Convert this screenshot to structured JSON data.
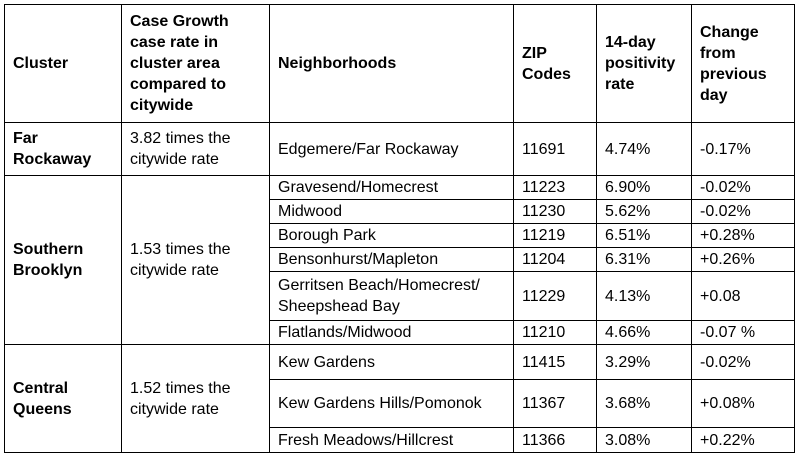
{
  "headers": {
    "cluster": "Cluster",
    "case_growth": "Case Growth\ncase rate in\ncluster area\ncompared to\ncitywide",
    "neighborhoods": "Neighborhoods",
    "zip": "ZIP\nCodes",
    "positivity": "14-day\npositivity\nrate",
    "change": "Change\nfrom\nprevious\nday"
  },
  "clusters": [
    {
      "name": "Far\nRockaway",
      "growth": "3.82 times the\ncitywide rate",
      "rows": [
        {
          "neighborhood": "Edgemere/Far Rockaway",
          "zip": "11691",
          "rate": "4.74%",
          "change": "-0.17%"
        }
      ]
    },
    {
      "name": "Southern\nBrooklyn",
      "growth": "1.53 times the\ncitywide rate",
      "rows": [
        {
          "neighborhood": "Gravesend/Homecrest",
          "zip": "11223",
          "rate": "6.90%",
          "change": "-0.02%"
        },
        {
          "neighborhood": "Midwood",
          "zip": "11230",
          "rate": "5.62%",
          "change": "-0.02%"
        },
        {
          "neighborhood": "Borough Park",
          "zip": "11219",
          "rate": "6.51%",
          "change": "+0.28%"
        },
        {
          "neighborhood": "Bensonhurst/Mapleton",
          "zip": "11204",
          "rate": "6.31%",
          "change": "+0.26%"
        },
        {
          "neighborhood": "Gerritsen Beach/Homecrest/\nSheepshead Bay",
          "zip": "11229",
          "rate": "4.13%",
          "change": "+0.08"
        },
        {
          "neighborhood": "Flatlands/Midwood",
          "zip": "11210",
          "rate": "4.66%",
          "change": "-0.07 %"
        }
      ]
    },
    {
      "name": "Central\nQueens",
      "growth": "1.52 times the\ncitywide rate",
      "rows": [
        {
          "neighborhood": "Kew Gardens",
          "zip": "11415",
          "rate": "3.29%",
          "change": "-0.02%"
        },
        {
          "neighborhood": "Kew Gardens Hills/Pomonok",
          "zip": "11367",
          "rate": "3.68%",
          "change": "+0.08%"
        },
        {
          "neighborhood": "Fresh Meadows/Hillcrest",
          "zip": "11366",
          "rate": "3.08%",
          "change": "+0.22%"
        }
      ]
    }
  ]
}
